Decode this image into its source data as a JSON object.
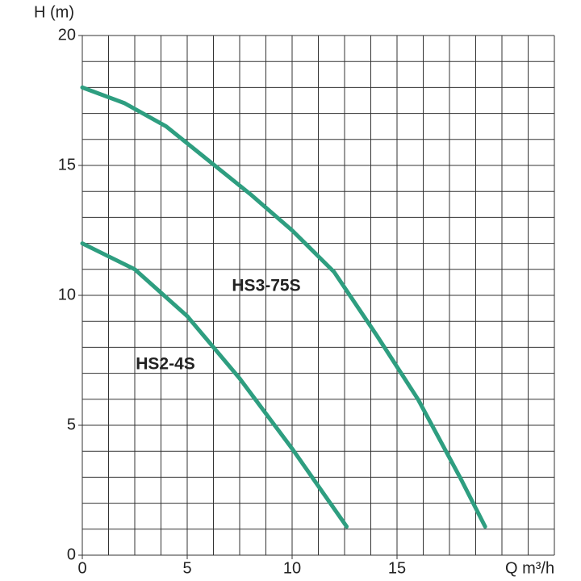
{
  "chart_data": {
    "type": "line",
    "y_label": "H (m)",
    "x_label": "Q m³/h",
    "xlim": [
      0,
      22.5
    ],
    "ylim": [
      0,
      20
    ],
    "xticks": [
      0,
      5,
      10,
      15
    ],
    "yticks": [
      0,
      5,
      10,
      15,
      20
    ],
    "grid": true,
    "x_grid_step": 1.25,
    "y_grid_step": 1,
    "series": [
      {
        "name": "HS3-75S",
        "color": "#2e9e80",
        "x": [
          0,
          2,
          4,
          6,
          8,
          10,
          12,
          14,
          16,
          18,
          19.2
        ],
        "values": [
          18,
          17.4,
          16.5,
          15.2,
          13.9,
          12.5,
          10.9,
          8.5,
          6,
          3,
          1.1
        ]
      },
      {
        "name": "HS2-4S",
        "color": "#2e9e80",
        "x": [
          0,
          2.5,
          5,
          7.5,
          10,
          12.6
        ],
        "values": [
          12,
          11,
          9.2,
          6.8,
          4.1,
          1.1
        ]
      }
    ]
  }
}
